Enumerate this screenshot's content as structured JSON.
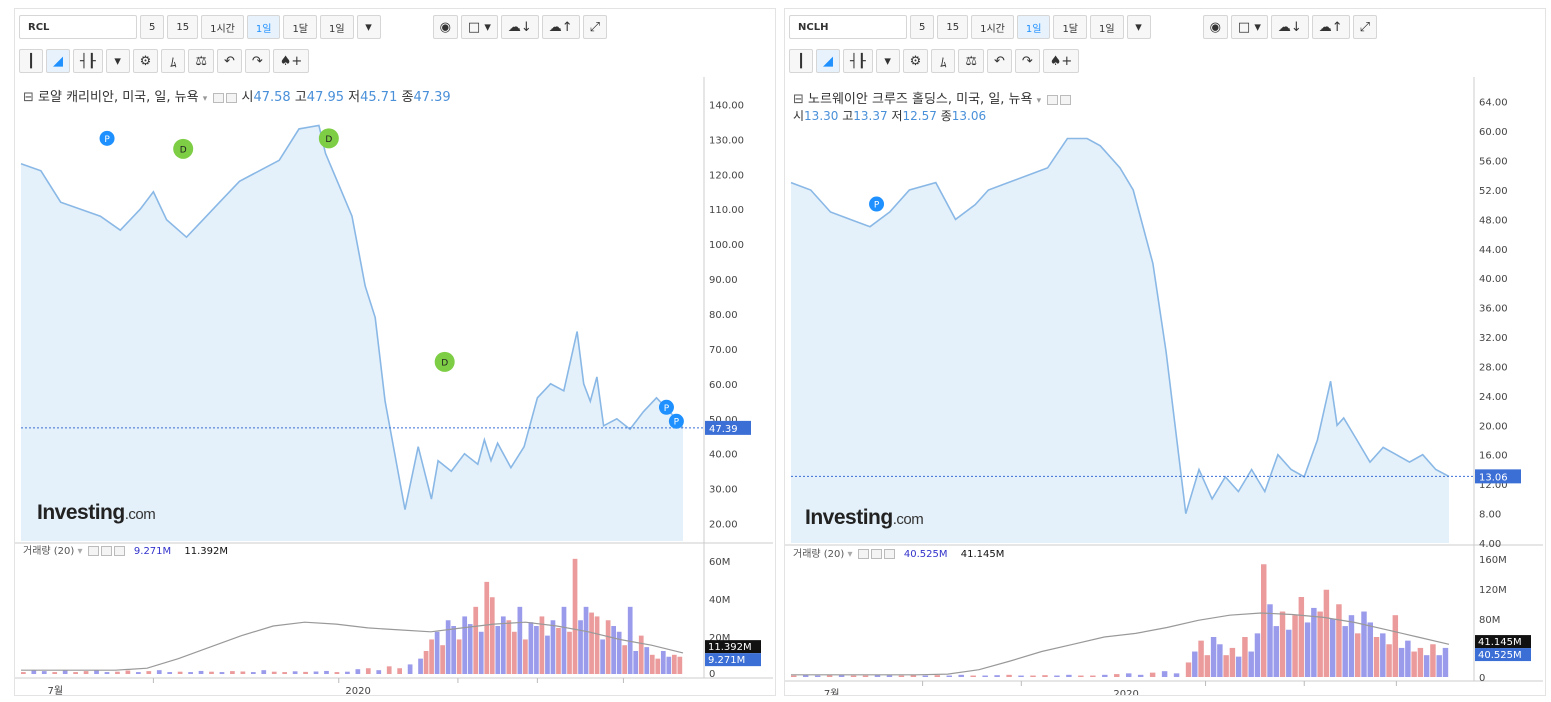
{
  "toolbar": {
    "intervals": [
      "5",
      "15",
      "1시간",
      "1일",
      "1달",
      "1일"
    ],
    "active_interval": "1일"
  },
  "panels": [
    {
      "symbol": "RCL",
      "legend_name": "로얄 캐리비안, 미국, 일, 뉴욕",
      "ohlc": {
        "o_label": "시",
        "o": "47.58",
        "h_label": "고",
        "h": "47.95",
        "l_label": "저",
        "l": "45.71",
        "c_label": "종",
        "c": "47.39"
      },
      "logo": {
        "main": "Investing",
        "dom": ".com"
      },
      "volume": {
        "label": "거래량 (20)",
        "v1": "9.271M",
        "v2": "11.392M"
      },
      "last_price_tag": "47.39",
      "vol_tag_1": "11.392M",
      "vol_tag_2": "9.271M",
      "x_labels": [
        "7월",
        "2020"
      ]
    },
    {
      "symbol": "NCLH",
      "legend_name": "노르웨이안 크루즈 홀딩스, 미국, 일, 뉴욕",
      "ohlc": {
        "o_label": "시",
        "o": "13.30",
        "h_label": "고",
        "h": "13.37",
        "l_label": "저",
        "l": "12.57",
        "c_label": "종",
        "c": "13.06"
      },
      "logo": {
        "main": "Investing",
        "dom": ".com"
      },
      "volume": {
        "label": "거래량 (20)",
        "v1": "40.525M",
        "v2": "41.145M"
      },
      "last_price_tag": "13.06",
      "vol_tag_1": "41.145M",
      "vol_tag_2": "40.525M",
      "x_labels": [
        "7월",
        "2020"
      ]
    }
  ],
  "chart_data": [
    {
      "type": "area",
      "title": "로얄 캐리비안, 미국, 일, 뉴욕",
      "series": [
        {
          "name": "RCL",
          "x": [
            0,
            0.03,
            0.06,
            0.09,
            0.12,
            0.15,
            0.18,
            0.2,
            0.22,
            0.25,
            0.28,
            0.3,
            0.33,
            0.36,
            0.39,
            0.42,
            0.45,
            0.46,
            0.48,
            0.5,
            0.52,
            0.535,
            0.55,
            0.58,
            0.6,
            0.62,
            0.63,
            0.65,
            0.67,
            0.69,
            0.7,
            0.71,
            0.72,
            0.74,
            0.76,
            0.78,
            0.8,
            0.82,
            0.84,
            0.85,
            0.86,
            0.87,
            0.88,
            0.9,
            0.92,
            0.94,
            0.96,
            0.98,
            1.0
          ],
          "values": [
            123,
            121,
            112,
            110,
            108,
            104,
            110,
            115,
            107,
            102,
            108,
            112,
            118,
            121,
            124,
            133,
            134,
            126,
            117,
            108,
            88,
            79,
            55,
            24,
            42,
            27,
            38,
            35,
            40,
            37,
            44,
            38,
            43,
            36,
            42,
            56,
            60,
            58,
            75,
            60,
            55,
            62,
            48,
            50,
            47,
            52,
            56,
            52,
            47.39
          ]
        }
      ],
      "events": [
        {
          "label": "P"
        },
        {
          "label": "D"
        },
        {
          "label": "D"
        },
        {
          "label": "D"
        },
        {
          "label": "P"
        },
        {
          "label": "P"
        }
      ],
      "y_ticks": [
        "140.00",
        "130.00",
        "120.00",
        "110.00",
        "100.00",
        "90.00",
        "80.00",
        "70.00",
        "60.00",
        "50.00",
        "40.00",
        "30.00",
        "20.00"
      ],
      "ylim": [
        15,
        145
      ],
      "volume": {
        "y_ticks": [
          "60M",
          "40M",
          "20M",
          "0"
        ],
        "ylim": [
          0,
          62
        ],
        "bars_early": [
          1,
          2,
          1.5,
          1,
          2,
          1,
          1.5,
          2,
          1,
          1.2,
          1.8,
          1,
          1.5,
          2,
          1,
          1.2,
          1,
          1.6,
          1.2,
          1,
          1.5,
          1.3,
          1,
          2,
          1.2,
          1,
          1.4,
          1.1,
          1.3,
          1.6,
          1,
          1.2,
          2.5,
          3,
          2,
          4,
          3,
          5
        ],
        "bars_late": [
          8,
          12,
          18,
          22,
          15,
          28,
          25,
          18,
          30,
          26,
          35,
          22,
          48,
          40,
          25,
          30,
          28,
          22,
          35,
          18,
          27,
          25,
          30,
          20,
          28,
          24,
          35,
          22,
          60,
          28,
          35,
          32,
          30,
          18,
          28,
          25,
          22,
          15,
          35,
          12,
          20,
          14,
          10,
          8,
          12,
          9,
          10,
          9
        ],
        "ma": [
          2,
          2,
          2,
          2,
          3,
          8,
          14,
          20,
          25,
          27,
          26,
          24,
          23,
          22,
          24,
          26,
          27,
          25,
          22,
          18,
          15,
          11
        ]
      }
    },
    {
      "type": "area",
      "title": "노르웨이안 크루즈 홀딩스, 미국, 일, 뉴욕",
      "series": [
        {
          "name": "NCLH",
          "x": [
            0,
            0.03,
            0.06,
            0.09,
            0.12,
            0.15,
            0.18,
            0.22,
            0.25,
            0.28,
            0.3,
            0.33,
            0.36,
            0.39,
            0.42,
            0.45,
            0.47,
            0.5,
            0.52,
            0.55,
            0.57,
            0.6,
            0.62,
            0.64,
            0.66,
            0.68,
            0.7,
            0.72,
            0.74,
            0.76,
            0.78,
            0.8,
            0.82,
            0.83,
            0.84,
            0.86,
            0.88,
            0.9,
            0.92,
            0.94,
            0.96,
            0.98,
            1.0
          ],
          "values": [
            53,
            52,
            49,
            48,
            47,
            49,
            52,
            53,
            48,
            50,
            52,
            53,
            54,
            55,
            59,
            59,
            58,
            55,
            52,
            42,
            30,
            8,
            14,
            10,
            13,
            11,
            14,
            11,
            16,
            14,
            13,
            18,
            26,
            20,
            21,
            18,
            15,
            17,
            16,
            15,
            16,
            14,
            13.06
          ]
        }
      ],
      "events": [
        {
          "label": "P"
        }
      ],
      "y_ticks": [
        "64.00",
        "60.00",
        "56.00",
        "52.00",
        "48.00",
        "44.00",
        "40.00",
        "36.00",
        "32.00",
        "28.00",
        "24.00",
        "20.00",
        "16.00",
        "12.00",
        "8.00",
        "4.00"
      ],
      "ylim": [
        4,
        66
      ],
      "volume": {
        "y_ticks": [
          "160M",
          "120M",
          "80M",
          "40M",
          "0"
        ],
        "ylim": [
          0,
          165
        ],
        "bars_early": [
          2,
          3,
          2,
          2.5,
          3,
          2,
          2,
          3,
          2.5,
          2,
          3,
          2,
          2.5,
          2,
          3,
          2,
          2,
          2.5,
          3,
          2,
          2,
          2.5,
          2,
          3,
          2,
          2,
          3,
          4,
          5,
          3,
          6,
          8,
          5
        ],
        "bars_late": [
          20,
          35,
          50,
          30,
          55,
          45,
          30,
          40,
          28,
          55,
          35,
          60,
          155,
          100,
          70,
          90,
          65,
          85,
          110,
          75,
          95,
          90,
          120,
          80,
          100,
          70,
          85,
          60,
          90,
          75,
          55,
          60,
          45,
          85,
          40,
          50,
          35,
          40,
          30,
          45,
          30,
          40
        ],
        "ma": [
          3,
          3,
          3,
          3,
          3,
          4,
          10,
          22,
          35,
          45,
          55,
          60,
          68,
          78,
          85,
          88,
          86,
          82,
          75,
          65,
          55,
          45
        ]
      }
    }
  ],
  "colors": {
    "line": "#8ab8e6",
    "fill": "#e4f1fa",
    "vol_up": "#e88a8a",
    "vol_down": "#8a8ae8",
    "ma": "#999999",
    "price_tag": "#3b6fd6",
    "event_p": "#1e90ff",
    "event_d": "#7dce44"
  },
  "icons": [
    "camera-icon",
    "square-icon",
    "cloud-download-icon",
    "cloud-upload-icon",
    "fullscreen-icon",
    "candle-icon",
    "area-chart-icon",
    "bar-icon",
    "gear-icon",
    "indicator-icon",
    "compare-icon",
    "undo-icon",
    "redo-icon",
    "alert-icon"
  ]
}
